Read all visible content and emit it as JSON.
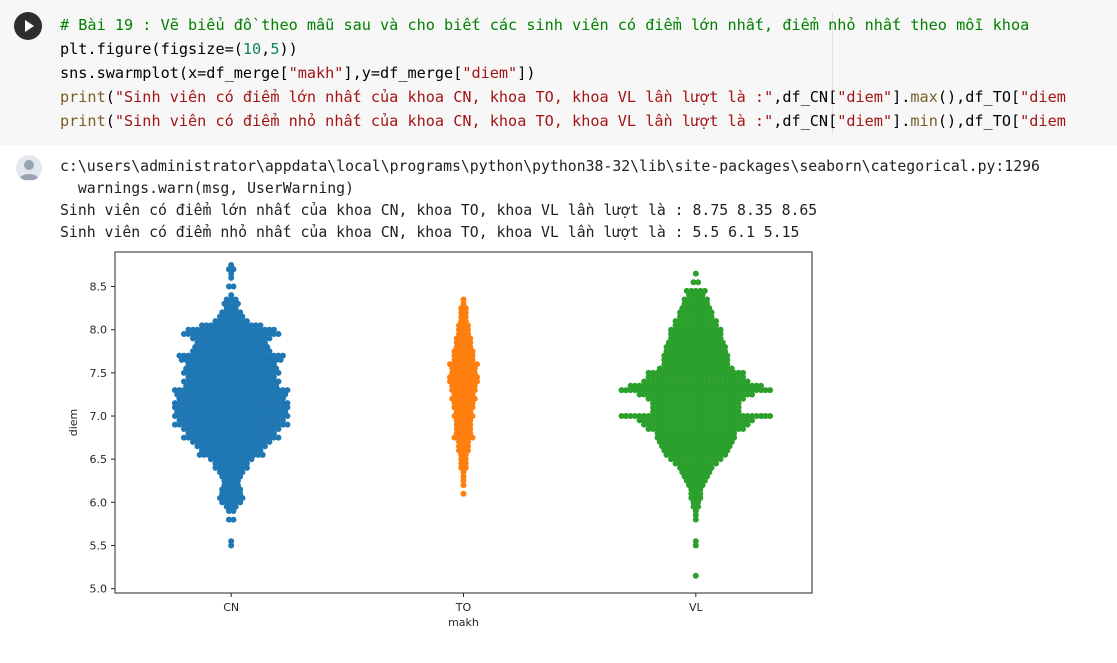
{
  "code_cell": {
    "line1": "# Bài 19 : Vẽ biểu đồ theo mẫu sau và cho biết các sinh viên có điểm lớn nhất, điểm nhỏ nhất theo mỗi khoa",
    "line2_a": "plt.figure(figsize=(",
    "line2_num1": "10",
    "line2_sep": ",",
    "line2_num2": "5",
    "line2_b": "))",
    "line3_a": "sns.swarmplot(x=df_merge[",
    "line3_s1": "\"makh\"",
    "line3_b": "],y=df_merge[",
    "line3_s2": "\"diem\"",
    "line3_c": "])",
    "line4_fn": "print",
    "line4_p": "(",
    "line4_str": "\"Sinh viên có điểm lớn nhất của khoa CN, khoa TO, khoa VL lần lượt là :\"",
    "line4_a": ",df_CN[",
    "line4_s2": "\"diem\"",
    "line4_b": "].",
    "line4_m": "max",
    "line4_c": "(),df_TO[",
    "line4_s3": "\"diem",
    "line5_fn": "print",
    "line5_p": "(",
    "line5_str": "\"Sinh viên có điểm nhỏ nhất của khoa CN, khoa TO, khoa VL lần lượt là :\"",
    "line5_a": ",df_CN[",
    "line5_s2": "\"diem\"",
    "line5_b": "].",
    "line5_m": "min",
    "line5_c": "(),df_TO[",
    "line5_s3": "\"diem"
  },
  "output": {
    "line1": "c:\\users\\administrator\\appdata\\local\\programs\\python\\python38-32\\lib\\site-packages\\seaborn\\categorical.py:1296",
    "line2": "  warnings.warn(msg, UserWarning)",
    "line3": "Sinh viên có điểm lớn nhất của khoa CN, khoa TO, khoa VL lần lượt là : 8.75 8.35 8.65",
    "line4": "Sinh viên có điểm nhỏ nhất của khoa CN, khoa TO, khoa VL lần lượt là : 5.5 6.1 5.15"
  },
  "icons": {
    "run": "play-icon",
    "output": "user-avatar-icon"
  },
  "chart_data": {
    "type": "scatter",
    "kind": "swarm",
    "xlabel": "makh",
    "ylabel": "diem",
    "categories": [
      "CN",
      "TO",
      "VL"
    ],
    "ylim": [
      4.95,
      8.9
    ],
    "yticks": [
      "5.0",
      "5.5",
      "6.0",
      "6.5",
      "7.0",
      "7.5",
      "8.0",
      "8.5"
    ],
    "grid": false,
    "colors": [
      "#1f77b4",
      "#ff7f0e",
      "#2ca02c"
    ],
    "series": [
      {
        "category": "CN",
        "points": [
          {
            "y": 8.75,
            "n": 1
          },
          {
            "y": 8.7,
            "n": 2
          },
          {
            "y": 8.65,
            "n": 1
          },
          {
            "y": 8.6,
            "n": 1
          },
          {
            "y": 8.5,
            "n": 2
          },
          {
            "y": 8.4,
            "n": 1
          },
          {
            "y": 8.35,
            "n": 3
          },
          {
            "y": 8.3,
            "n": 4
          },
          {
            "y": 8.25,
            "n": 3
          },
          {
            "y": 8.2,
            "n": 5
          },
          {
            "y": 8.15,
            "n": 6
          },
          {
            "y": 8.1,
            "n": 8
          },
          {
            "y": 8.05,
            "n": 14
          },
          {
            "y": 8.0,
            "n": 20
          },
          {
            "y": 7.95,
            "n": 22
          },
          {
            "y": 7.9,
            "n": 18
          },
          {
            "y": 7.85,
            "n": 16
          },
          {
            "y": 7.8,
            "n": 17
          },
          {
            "y": 7.75,
            "n": 18
          },
          {
            "y": 7.7,
            "n": 24
          },
          {
            "y": 7.65,
            "n": 23
          },
          {
            "y": 7.6,
            "n": 20
          },
          {
            "y": 7.55,
            "n": 21
          },
          {
            "y": 7.5,
            "n": 22
          },
          {
            "y": 7.45,
            "n": 20
          },
          {
            "y": 7.4,
            "n": 22
          },
          {
            "y": 7.35,
            "n": 21
          },
          {
            "y": 7.3,
            "n": 26
          },
          {
            "y": 7.25,
            "n": 25
          },
          {
            "y": 7.2,
            "n": 24
          },
          {
            "y": 7.15,
            "n": 26
          },
          {
            "y": 7.1,
            "n": 26
          },
          {
            "y": 7.05,
            "n": 25
          },
          {
            "y": 7.0,
            "n": 26
          },
          {
            "y": 6.95,
            "n": 24
          },
          {
            "y": 6.9,
            "n": 26
          },
          {
            "y": 6.85,
            "n": 22
          },
          {
            "y": 6.8,
            "n": 20
          },
          {
            "y": 6.75,
            "n": 22
          },
          {
            "y": 6.7,
            "n": 18
          },
          {
            "y": 6.65,
            "n": 16
          },
          {
            "y": 6.6,
            "n": 14
          },
          {
            "y": 6.55,
            "n": 15
          },
          {
            "y": 6.5,
            "n": 10
          },
          {
            "y": 6.45,
            "n": 8
          },
          {
            "y": 6.4,
            "n": 8
          },
          {
            "y": 6.35,
            "n": 6
          },
          {
            "y": 6.3,
            "n": 5
          },
          {
            "y": 6.25,
            "n": 4
          },
          {
            "y": 6.2,
            "n": 4
          },
          {
            "y": 6.15,
            "n": 5
          },
          {
            "y": 6.1,
            "n": 5
          },
          {
            "y": 6.05,
            "n": 6
          },
          {
            "y": 6.0,
            "n": 5
          },
          {
            "y": 5.95,
            "n": 3
          },
          {
            "y": 5.9,
            "n": 2
          },
          {
            "y": 5.8,
            "n": 2
          },
          {
            "y": 5.55,
            "n": 1
          },
          {
            "y": 5.5,
            "n": 1
          }
        ]
      },
      {
        "category": "TO",
        "points": [
          {
            "y": 8.35,
            "n": 1
          },
          {
            "y": 8.3,
            "n": 1
          },
          {
            "y": 8.25,
            "n": 2
          },
          {
            "y": 8.2,
            "n": 2
          },
          {
            "y": 8.15,
            "n": 2
          },
          {
            "y": 8.1,
            "n": 2
          },
          {
            "y": 8.05,
            "n": 3
          },
          {
            "y": 8.0,
            "n": 3
          },
          {
            "y": 7.95,
            "n": 3
          },
          {
            "y": 7.9,
            "n": 4
          },
          {
            "y": 7.85,
            "n": 4
          },
          {
            "y": 7.8,
            "n": 4
          },
          {
            "y": 7.75,
            "n": 5
          },
          {
            "y": 7.7,
            "n": 5
          },
          {
            "y": 7.65,
            "n": 5
          },
          {
            "y": 7.6,
            "n": 7
          },
          {
            "y": 7.55,
            "n": 6
          },
          {
            "y": 7.5,
            "n": 6
          },
          {
            "y": 7.45,
            "n": 7
          },
          {
            "y": 7.4,
            "n": 7
          },
          {
            "y": 7.35,
            "n": 6
          },
          {
            "y": 7.3,
            "n": 6
          },
          {
            "y": 7.25,
            "n": 5
          },
          {
            "y": 7.2,
            "n": 6
          },
          {
            "y": 7.15,
            "n": 5
          },
          {
            "y": 7.1,
            "n": 5
          },
          {
            "y": 7.05,
            "n": 4
          },
          {
            "y": 7.0,
            "n": 5
          },
          {
            "y": 6.95,
            "n": 4
          },
          {
            "y": 6.9,
            "n": 4
          },
          {
            "y": 6.85,
            "n": 4
          },
          {
            "y": 6.8,
            "n": 4
          },
          {
            "y": 6.75,
            "n": 5
          },
          {
            "y": 6.7,
            "n": 3
          },
          {
            "y": 6.65,
            "n": 3
          },
          {
            "y": 6.6,
            "n": 3
          },
          {
            "y": 6.55,
            "n": 2
          },
          {
            "y": 6.5,
            "n": 2
          },
          {
            "y": 6.45,
            "n": 2
          },
          {
            "y": 6.4,
            "n": 2
          },
          {
            "y": 6.35,
            "n": 1
          },
          {
            "y": 6.3,
            "n": 1
          },
          {
            "y": 6.25,
            "n": 1
          },
          {
            "y": 6.2,
            "n": 1
          },
          {
            "y": 6.1,
            "n": 1
          }
        ]
      },
      {
        "category": "VL",
        "points": [
          {
            "y": 8.65,
            "n": 1
          },
          {
            "y": 8.55,
            "n": 2
          },
          {
            "y": 8.45,
            "n": 5
          },
          {
            "y": 8.4,
            "n": 4
          },
          {
            "y": 8.35,
            "n": 6
          },
          {
            "y": 8.3,
            "n": 6
          },
          {
            "y": 8.25,
            "n": 7
          },
          {
            "y": 8.2,
            "n": 8
          },
          {
            "y": 8.15,
            "n": 8
          },
          {
            "y": 8.1,
            "n": 10
          },
          {
            "y": 8.05,
            "n": 10
          },
          {
            "y": 8.0,
            "n": 12
          },
          {
            "y": 7.95,
            "n": 12
          },
          {
            "y": 7.9,
            "n": 12
          },
          {
            "y": 7.85,
            "n": 13
          },
          {
            "y": 7.8,
            "n": 14
          },
          {
            "y": 7.75,
            "n": 14
          },
          {
            "y": 7.7,
            "n": 15
          },
          {
            "y": 7.65,
            "n": 15
          },
          {
            "y": 7.6,
            "n": 15
          },
          {
            "y": 7.55,
            "n": 17
          },
          {
            "y": 7.5,
            "n": 22
          },
          {
            "y": 7.45,
            "n": 22
          },
          {
            "y": 7.4,
            "n": 24
          },
          {
            "y": 7.35,
            "n": 30
          },
          {
            "y": 7.3,
            "n": 34
          },
          {
            "y": 7.25,
            "n": 26
          },
          {
            "y": 7.2,
            "n": 22
          },
          {
            "y": 7.15,
            "n": 20
          },
          {
            "y": 7.1,
            "n": 20
          },
          {
            "y": 7.05,
            "n": 20
          },
          {
            "y": 7.0,
            "n": 34
          },
          {
            "y": 6.95,
            "n": 26
          },
          {
            "y": 6.9,
            "n": 24
          },
          {
            "y": 6.85,
            "n": 22
          },
          {
            "y": 6.8,
            "n": 18
          },
          {
            "y": 6.75,
            "n": 18
          },
          {
            "y": 6.7,
            "n": 17
          },
          {
            "y": 6.65,
            "n": 16
          },
          {
            "y": 6.6,
            "n": 15
          },
          {
            "y": 6.55,
            "n": 14
          },
          {
            "y": 6.5,
            "n": 12
          },
          {
            "y": 6.45,
            "n": 10
          },
          {
            "y": 6.4,
            "n": 8
          },
          {
            "y": 6.35,
            "n": 7
          },
          {
            "y": 6.3,
            "n": 6
          },
          {
            "y": 6.25,
            "n": 5
          },
          {
            "y": 6.2,
            "n": 4
          },
          {
            "y": 6.15,
            "n": 3
          },
          {
            "y": 6.1,
            "n": 3
          },
          {
            "y": 6.05,
            "n": 3
          },
          {
            "y": 6.0,
            "n": 2
          },
          {
            "y": 5.95,
            "n": 2
          },
          {
            "y": 5.9,
            "n": 1
          },
          {
            "y": 5.85,
            "n": 1
          },
          {
            "y": 5.8,
            "n": 1
          },
          {
            "y": 5.55,
            "n": 1
          },
          {
            "y": 5.5,
            "n": 1
          },
          {
            "y": 5.15,
            "n": 1
          }
        ]
      }
    ]
  }
}
